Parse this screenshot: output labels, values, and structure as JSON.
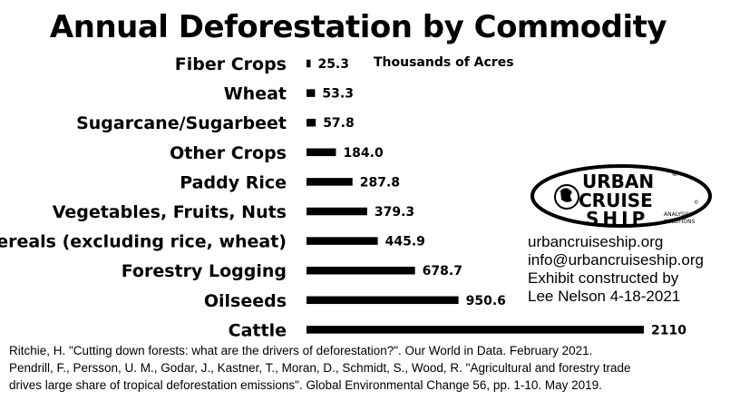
{
  "chart_data": {
    "type": "bar",
    "orientation": "horizontal",
    "title": "Annual Deforestation by Commodity",
    "unit_label": "Thousands of Acres",
    "categories": [
      "Fiber Crops",
      "Wheat",
      "Sugarcane/Sugarbeet",
      "Other Crops",
      "Paddy Rice",
      "Vegetables, Fruits, Nuts",
      "Cereals (excluding rice, wheat)",
      "Forestry Logging",
      "Oilseeds",
      "Cattle"
    ],
    "values": [
      25.3,
      53.3,
      57.8,
      184.0,
      287.8,
      379.3,
      445.9,
      678.7,
      950.6,
      2110
    ],
    "value_labels": [
      "25.3",
      "53.3",
      "57.8",
      "184.0",
      "287.8",
      "379.3",
      "445.9",
      "678.7",
      "950.6",
      "2110"
    ],
    "xlim": [
      0,
      2110
    ],
    "bar_color": "#000000",
    "grid": false
  },
  "logo": {
    "line1": "URBAN",
    "line2": "CRUISE",
    "line3": "SHIP",
    "tag1": "ANALYSIS",
    "tag2": "SOLUTIONS",
    "registered": "®",
    "copyright": "©"
  },
  "contact": {
    "website": "urbancruiseship.org",
    "email": "info@urbancruiseship.org",
    "credit1": "Exhibit constructed by",
    "credit2": "Lee Nelson 4-18-2021"
  },
  "sources": [
    "Ritchie, H. \"Cutting down forests: what are the drivers of deforestation?\". Our World in Data. February 2021.",
    "Pendrill, F., Persson, U. M., Godar, J., Kastner, T., Moran, D., Schmidt, S., Wood, R. \"Agricultural and forestry trade",
    "drives large share of tropical deforestation emissions\". Global Environmental Change 56, pp. 1-10. May 2019."
  ]
}
